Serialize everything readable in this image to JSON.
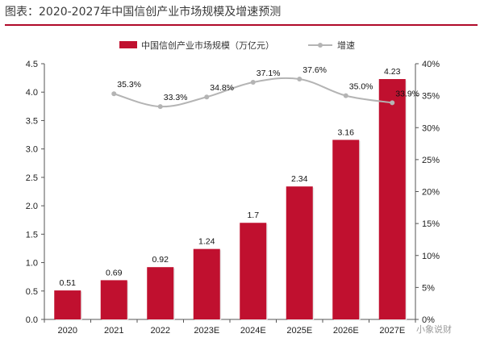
{
  "chart_data": {
    "type": "bar",
    "title": "图表：2020-2027年中国信创产业市场规模及增速预测",
    "categories": [
      "2020",
      "2021",
      "2022",
      "2023E",
      "2024E",
      "2025E",
      "2026E",
      "2027E"
    ],
    "series": [
      {
        "name": "中国信创产业市场规模（万亿元）",
        "type": "bar",
        "axis": "left",
        "color": "#c0102f",
        "values": [
          0.51,
          0.69,
          0.92,
          1.24,
          1.7,
          2.34,
          3.16,
          4.23
        ],
        "labels": [
          "0.51",
          "0.69",
          "0.92",
          "1.24",
          "1.7",
          "2.34",
          "3.16",
          "4.23"
        ]
      },
      {
        "name": "增速",
        "type": "line",
        "axis": "right",
        "color": "#b4b4b4",
        "values": [
          null,
          35.3,
          33.3,
          34.8,
          37.1,
          37.6,
          35.0,
          33.9
        ],
        "labels": [
          null,
          "35.3%",
          "33.3%",
          "34.8%",
          "37.1%",
          "37.6%",
          "35.0%",
          "33.9%"
        ]
      }
    ],
    "y_left": {
      "min": 0,
      "max": 4.5,
      "ticks": [
        "0.0",
        "0.5",
        "1.0",
        "1.5",
        "2.0",
        "2.5",
        "3.0",
        "3.5",
        "4.0",
        "4.5"
      ]
    },
    "y_right": {
      "min": 0,
      "max": 40,
      "ticks": [
        "0%",
        "5%",
        "10%",
        "15%",
        "20%",
        "25%",
        "30%",
        "35%",
        "40%"
      ]
    },
    "legend_position": "top-center",
    "grid": false
  },
  "watermark": "小象说财"
}
